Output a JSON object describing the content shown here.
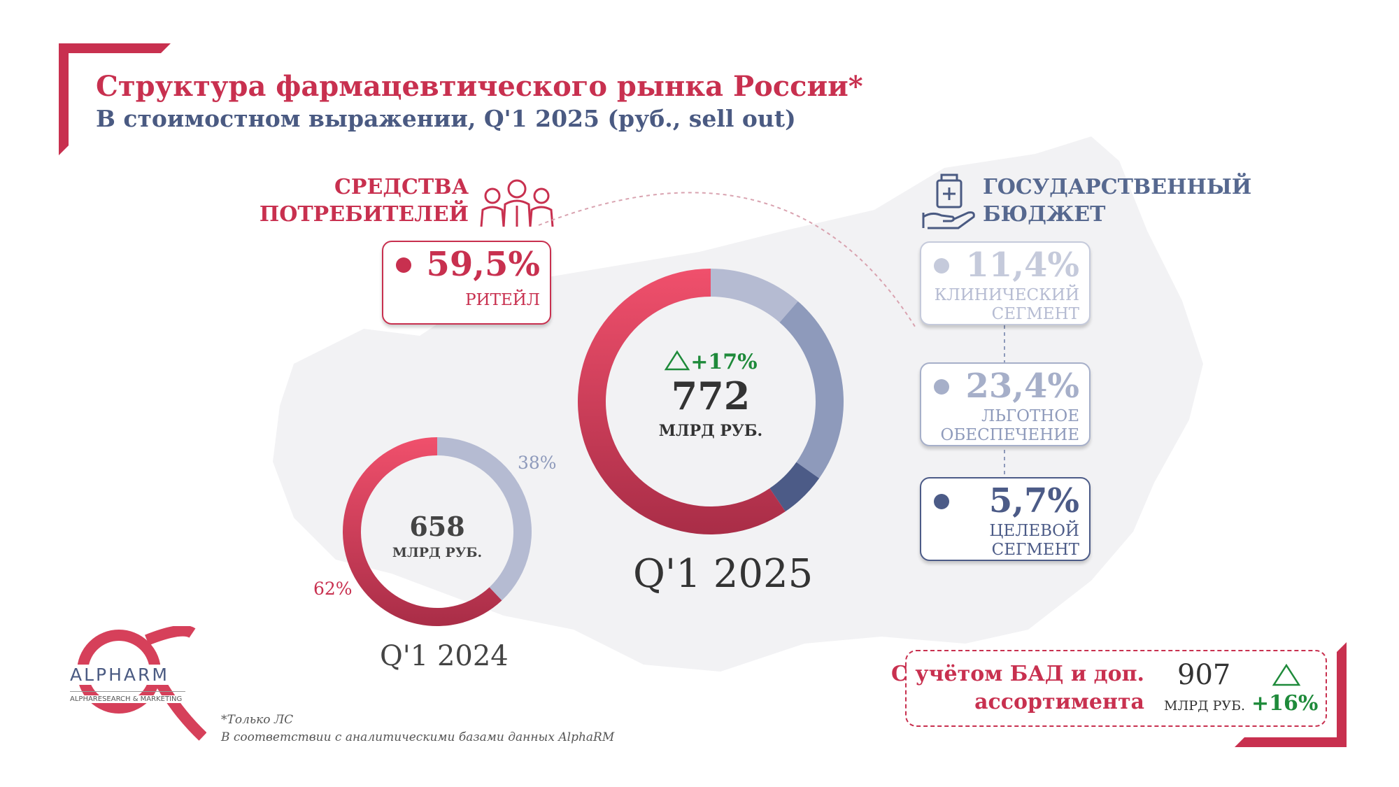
{
  "header": {
    "title": "Структура фармацевтического рынка России*",
    "subtitle": "В стоимостном выражении, Q'1 2025 (руб., sell out)"
  },
  "consumer_group": {
    "line1": "СРЕДСТВА",
    "line2": "ПОТРЕБИТЕЛЕЙ"
  },
  "state_group": {
    "line1": "ГОСУДАРСТВЕННЫЙ",
    "line2": "БЮДЖЕТ"
  },
  "cards": {
    "retail": {
      "value": "59,5%",
      "label": "РИТЕЙЛ"
    },
    "clinical": {
      "value": "11,4%",
      "label1": "КЛИНИЧЕСКИЙ",
      "label2": "СЕГМЕНТ"
    },
    "benefit": {
      "value": "23,4%",
      "label1": "ЛЬГОТНОЕ",
      "label2": "ОБЕСПЕЧЕНИЕ"
    },
    "target": {
      "value": "5,7%",
      "label1": "ЦЕЛЕВОЙ",
      "label2": "СЕГМЕНТ"
    }
  },
  "q2025": {
    "growth": "+17%",
    "total": "772",
    "unit": "МЛРД РУБ.",
    "period": "Q'1 2025"
  },
  "q2024": {
    "total": "658",
    "unit": "МЛРД РУБ.",
    "period": "Q'1 2024",
    "state_share": "38%",
    "consumer_share": "62%"
  },
  "bad": {
    "line1": "С учётом БАД и доп.",
    "line2": "ассортимента",
    "value": "907",
    "unit": "МЛРД РУБ.",
    "growth": "+16%"
  },
  "footnote": {
    "line1": "*Только ЛС",
    "line2": "В соответствии с аналитическими базами данных AlphaRM"
  },
  "logo": {
    "name": "ALPHARM",
    "tagline": "ALPHARESEARCH & MARKETING"
  },
  "colors": {
    "accent": "#c8304f",
    "retail": "#e5455f",
    "clinical": "#b5bbd2",
    "benefit": "#8e9abb",
    "target": "#4c5b87",
    "growth": "#1e8a3a",
    "navy": "#4a5a82"
  },
  "chart_data": [
    {
      "type": "pie",
      "title": "Q'1 2025",
      "total": 772,
      "unit": "МЛРД РУБ.",
      "categories": [
        "Ритейл",
        "Клинический сегмент",
        "Льготное обеспечение",
        "Целевой сегмент"
      ],
      "values": [
        59.5,
        11.4,
        23.4,
        5.7
      ]
    },
    {
      "type": "pie",
      "title": "Q'1 2024",
      "total": 658,
      "unit": "МЛРД РУБ.",
      "categories": [
        "Средства потребителей",
        "Государственный бюджет"
      ],
      "values": [
        62,
        38
      ]
    }
  ]
}
